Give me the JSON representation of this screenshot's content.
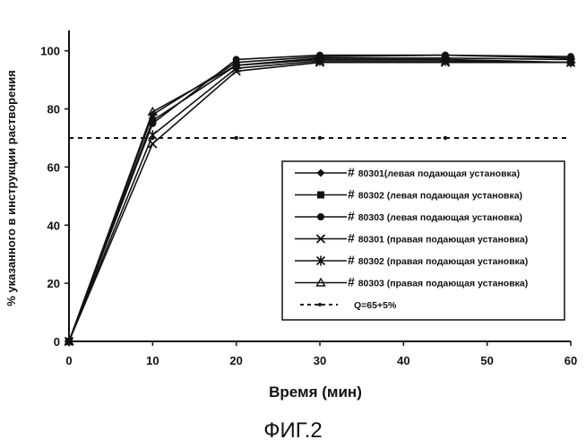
{
  "chart_data": {
    "type": "line",
    "title": "",
    "xlabel": "Время (мин)",
    "ylabel": "% указанного в инструкции растворения",
    "xlim": [
      0,
      60
    ],
    "ylim": [
      0,
      107
    ],
    "x_ticks": [
      0,
      10,
      20,
      30,
      40,
      50,
      60
    ],
    "y_ticks": [
      0,
      20,
      40,
      60,
      80,
      100
    ],
    "grid": false,
    "legend_position": "center-right",
    "series": [
      {
        "name": "80301(левая подающая установка)",
        "marker": "diamond",
        "x": [
          0,
          10,
          20,
          30,
          45,
          60
        ],
        "y": [
          0,
          78,
          96,
          98,
          98.5,
          97.5
        ]
      },
      {
        "name": "80302 (левая подающая установка)",
        "marker": "square",
        "x": [
          0,
          10,
          20,
          30,
          45,
          60
        ],
        "y": [
          0,
          76,
          95,
          97,
          97,
          96
        ]
      },
      {
        "name": "80303 (левая подающая установка)",
        "marker": "circle",
        "x": [
          0,
          10,
          20,
          30,
          45,
          60
        ],
        "y": [
          0,
          75,
          97,
          98.5,
          98.5,
          98
        ]
      },
      {
        "name": "80301 (правая подающая установка)",
        "marker": "x",
        "x": [
          0,
          10,
          20,
          30,
          45,
          60
        ],
        "y": [
          0,
          68,
          93,
          96,
          96,
          96
        ]
      },
      {
        "name": "80302 (правая подающая установка)",
        "marker": "star",
        "x": [
          0,
          10,
          20,
          30,
          45,
          60
        ],
        "y": [
          0,
          71,
          94,
          96.5,
          96.5,
          96
        ]
      },
      {
        "name": "80303 (правая подающая установка)",
        "marker": "triangle",
        "x": [
          0,
          10,
          20,
          30,
          45,
          60
        ],
        "y": [
          0,
          79,
          95,
          97.5,
          97.5,
          97
        ]
      },
      {
        "name": "Q=65+5%",
        "style": "dashed",
        "x": [
          0,
          60
        ],
        "y": [
          70,
          70
        ]
      }
    ],
    "legend": {
      "hash_prefix": "#",
      "labels": [
        "80301(левая подающая установка)",
        "80302 (левая подающая установка)",
        "80303 (левая подающая установка)",
        "80301 (правая подающая установка)",
        "80302 (правая подающая установка)",
        "80303 (правая подающая установка)",
        "Q=65+5%"
      ]
    },
    "caption": "ФИГ.2"
  }
}
